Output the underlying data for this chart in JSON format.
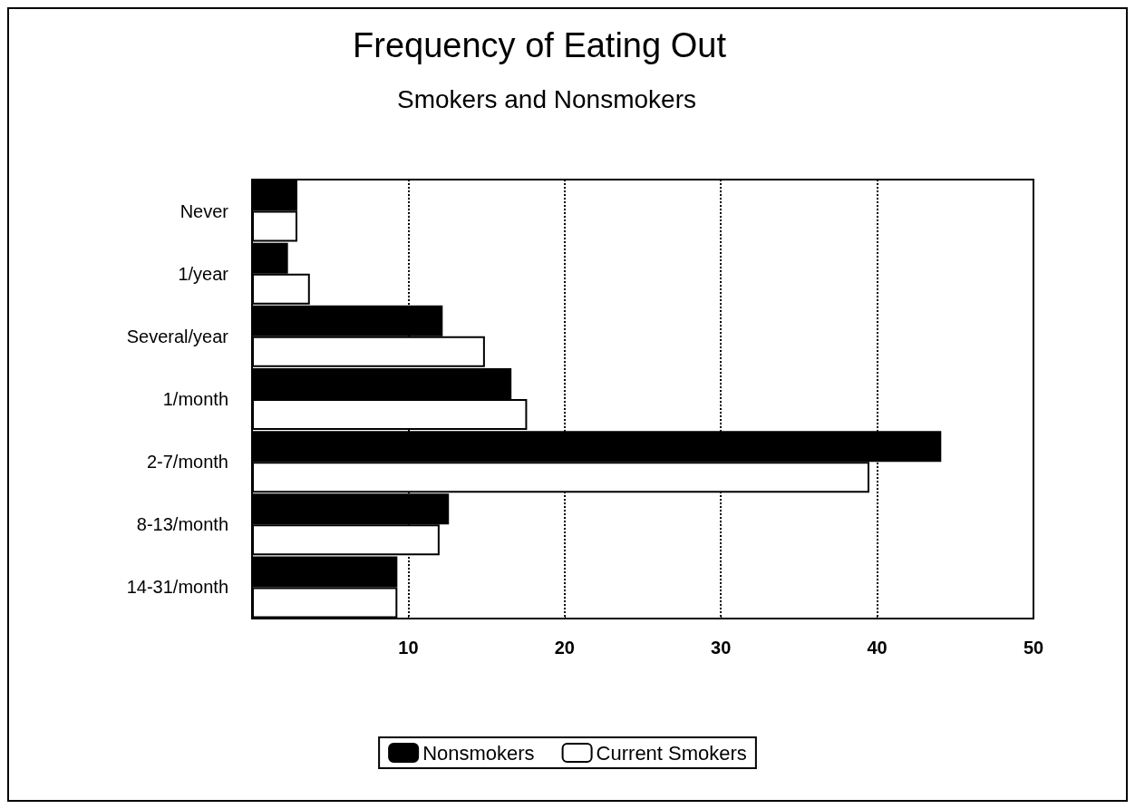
{
  "chart_data": {
    "type": "bar",
    "orientation": "horizontal",
    "title": "Frequency of Eating Out",
    "subtitle": "Smokers and Nonsmokers",
    "categories": [
      "Never",
      "1/year",
      "Several/year",
      "1/month",
      "2-7/month",
      "8-13/month",
      "14-31/month"
    ],
    "series": [
      {
        "name": "Nonsmokers",
        "color": "#000000",
        "values": [
          2.9,
          2.3,
          12.2,
          16.6,
          44.1,
          12.6,
          9.3
        ]
      },
      {
        "name": "Current Smokers",
        "color": "#ffffff",
        "values": [
          2.9,
          3.7,
          14.9,
          17.6,
          39.5,
          12.0,
          9.3
        ]
      }
    ],
    "xlim": [
      0,
      50
    ],
    "xticks": [
      {
        "value": 0,
        "label": null
      },
      10,
      20,
      30,
      40,
      50
    ],
    "grid": "x",
    "legend": "bottom"
  }
}
